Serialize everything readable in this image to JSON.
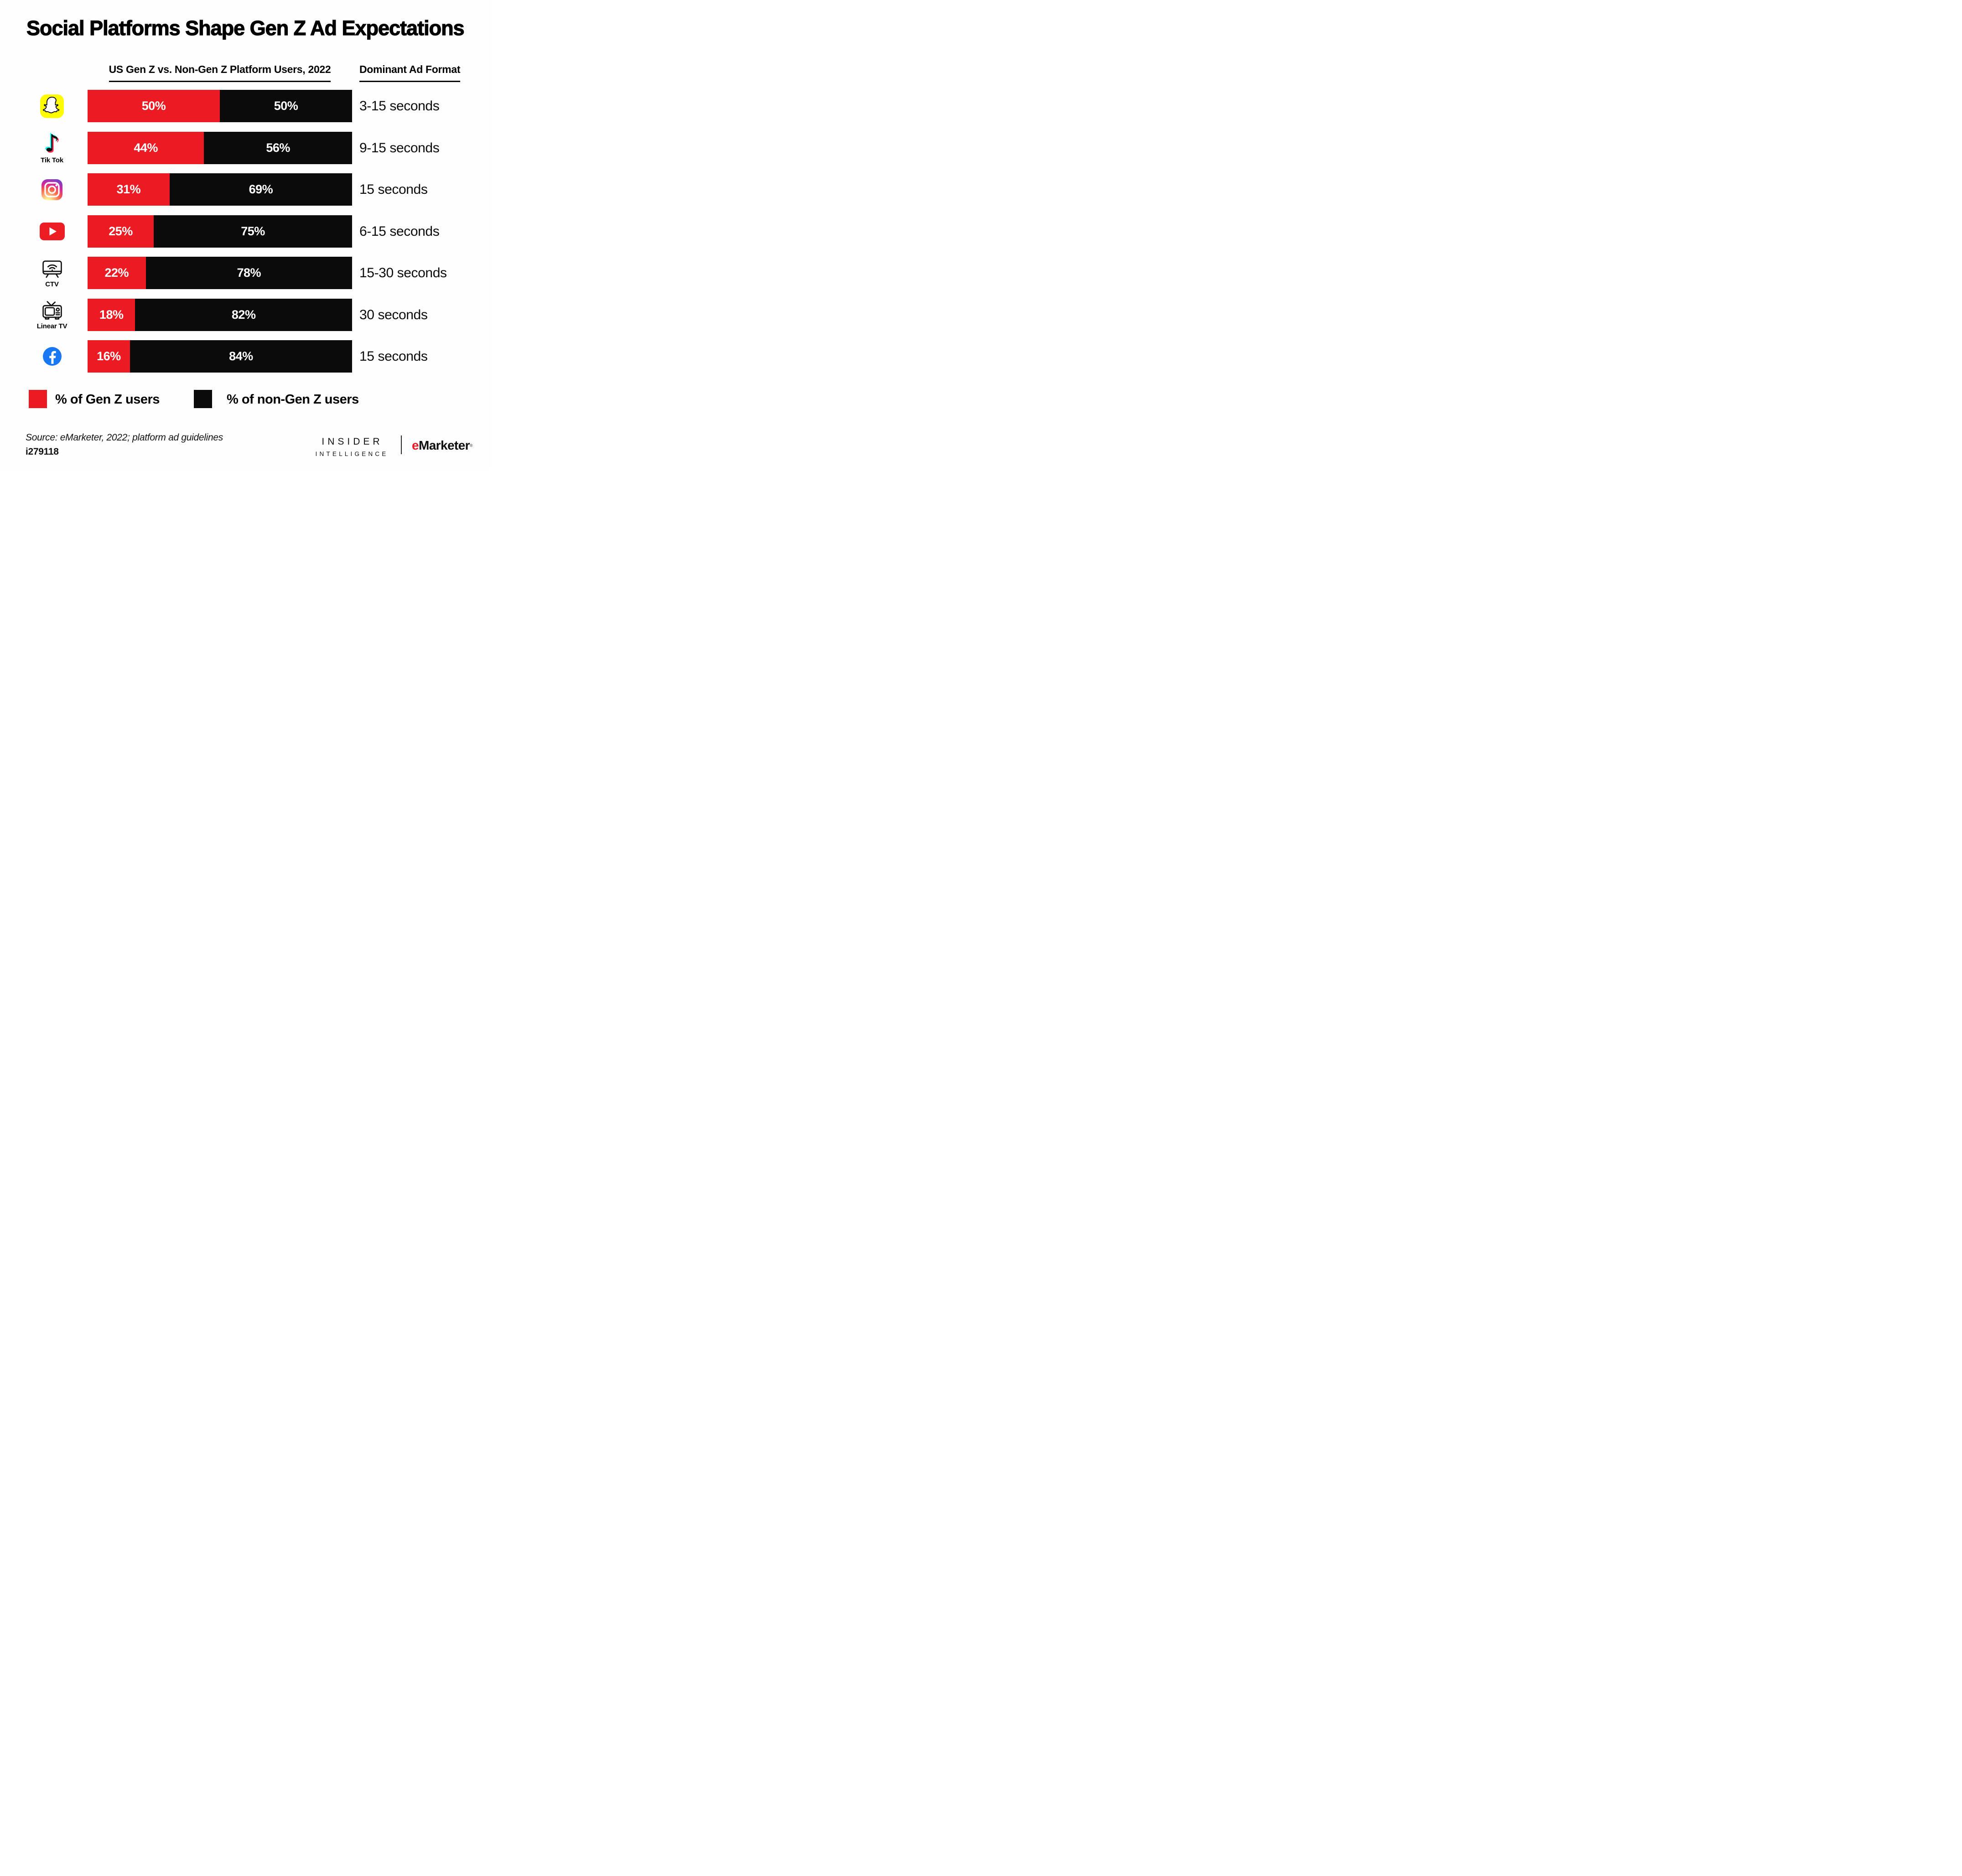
{
  "title": "Social Platforms Shape Gen Z Ad Expectations",
  "columns": {
    "left_header": "US Gen Z vs. Non-Gen Z Platform Users, 2022",
    "right_header": "Dominant Ad Format"
  },
  "colors": {
    "gen_z_red": "#EC1B23",
    "non_gen_z_black": "#0B0B0B",
    "background": "#FEFEFE"
  },
  "chart_data": {
    "type": "bar",
    "orientation": "horizontal-stacked",
    "unit": "%",
    "xlim": [
      0,
      100
    ],
    "grid": false,
    "legend_position": "bottom",
    "title": "Social Platforms Shape Gen Z Ad Expectations",
    "subtitle": "US Gen Z vs. Non-Gen Z Platform Users, 2022",
    "categories": [
      "Snapchat",
      "Tik Tok",
      "Instagram",
      "YouTube",
      "CTV",
      "Linear TV",
      "Facebook"
    ],
    "series": [
      {
        "name": "% of Gen Z users",
        "color": "#EC1B23",
        "values": [
          50,
          44,
          31,
          25,
          22,
          18,
          16
        ]
      },
      {
        "name": "% of non-Gen Z users",
        "color": "#0B0B0B",
        "values": [
          50,
          56,
          69,
          75,
          78,
          82,
          84
        ]
      }
    ],
    "ad_formats": [
      "3-15 seconds",
      "9-15 seconds",
      "15 seconds",
      "6-15 seconds",
      "15-30 seconds",
      "30 seconds",
      "15 seconds"
    ],
    "rows": [
      {
        "platform": "Snapchat",
        "icon": "snapchat-icon",
        "icon_label": "",
        "gen_z": 50,
        "non_gen_z": 50,
        "gen_z_label": "50%",
        "non_gen_z_label": "50%",
        "ad_format": "3-15 seconds"
      },
      {
        "platform": "Tik Tok",
        "icon": "tiktok-icon",
        "icon_label": "Tik Tok",
        "gen_z": 44,
        "non_gen_z": 56,
        "gen_z_label": "44%",
        "non_gen_z_label": "56%",
        "ad_format": "9-15 seconds"
      },
      {
        "platform": "Instagram",
        "icon": "instagram-icon",
        "icon_label": "",
        "gen_z": 31,
        "non_gen_z": 69,
        "gen_z_label": "31%",
        "non_gen_z_label": "69%",
        "ad_format": "15 seconds"
      },
      {
        "platform": "YouTube",
        "icon": "youtube-icon",
        "icon_label": "",
        "gen_z": 25,
        "non_gen_z": 75,
        "gen_z_label": "25%",
        "non_gen_z_label": "75%",
        "ad_format": "6-15 seconds"
      },
      {
        "platform": "CTV",
        "icon": "ctv-icon",
        "icon_label": "CTV",
        "gen_z": 22,
        "non_gen_z": 78,
        "gen_z_label": "22%",
        "non_gen_z_label": "78%",
        "ad_format": "15-30 seconds"
      },
      {
        "platform": "Linear TV",
        "icon": "linear-tv-icon",
        "icon_label": "Linear TV",
        "gen_z": 18,
        "non_gen_z": 82,
        "gen_z_label": "18%",
        "non_gen_z_label": "82%",
        "ad_format": "30 seconds"
      },
      {
        "platform": "Facebook",
        "icon": "facebook-icon",
        "icon_label": "",
        "gen_z": 16,
        "non_gen_z": 84,
        "gen_z_label": "16%",
        "non_gen_z_label": "84%",
        "ad_format": "15 seconds"
      }
    ]
  },
  "legend": {
    "items": [
      {
        "label": "% of Gen Z users",
        "color": "#EC1B23"
      },
      {
        "label": "% of non-Gen Z users",
        "color": "#0B0B0B"
      }
    ]
  },
  "footer": {
    "source": "Source: eMarketer, 2022; platform ad guidelines",
    "chart_id": "i279118",
    "brand": {
      "line1": "INSIDER",
      "line2": "INTELLIGENCE",
      "right_e": "e",
      "right_rest": "Marketer",
      "registered_mark": "®"
    }
  }
}
